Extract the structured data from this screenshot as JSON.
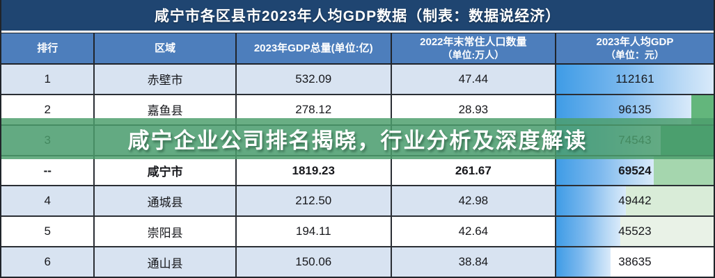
{
  "title": "咸宁市各区县市2023年人均GDP数据（制表：数据说经济）",
  "banner": {
    "text": "咸宁企业公司排名揭晓，行业分析及深度解读"
  },
  "table": {
    "columns": [
      {
        "label": "排行",
        "label2": ""
      },
      {
        "label": "区域",
        "label2": ""
      },
      {
        "label": "2023年GDP总量(单位:亿)",
        "label2": ""
      },
      {
        "label": "2022年末常住人口数量",
        "label2": "（单位:万人）"
      },
      {
        "label": "2023年人均GDP",
        "label2": "（单位：元）"
      }
    ],
    "rows": [
      {
        "rank": "1",
        "region": "赤壁市",
        "gdp": "532.09",
        "population": "47.44",
        "per_capita": "112161",
        "per_capita_value": 112161,
        "variant": "blue",
        "bold": false,
        "tail_color": ""
      },
      {
        "rank": "2",
        "region": "嘉鱼县",
        "gdp": "278.12",
        "population": "28.93",
        "per_capita": "96135",
        "per_capita_value": 96135,
        "variant": "white",
        "bold": false,
        "tail_color": "#63b67c"
      },
      {
        "rank": "3",
        "region": "",
        "gdp": "",
        "population": "",
        "per_capita": "74543",
        "per_capita_value": 74543,
        "variant": "blue",
        "bold": false,
        "tail_color": "#48a474"
      },
      {
        "rank": "--",
        "region": "咸宁市",
        "gdp": "1819.23",
        "population": "261.67",
        "per_capita": "69524",
        "per_capita_value": 69524,
        "variant": "white",
        "bold": true,
        "tail_color": "#a5d6ae"
      },
      {
        "rank": "4",
        "region": "通城县",
        "gdp": "212.50",
        "population": "42.98",
        "per_capita": "49442",
        "per_capita_value": 49442,
        "variant": "blue",
        "bold": false,
        "tail_color": "#d9ecd8"
      },
      {
        "rank": "5",
        "region": "崇阳县",
        "gdp": "194.11",
        "population": "42.64",
        "per_capita": "45523",
        "per_capita_value": 45523,
        "variant": "white",
        "bold": false,
        "tail_color": "#e9f2e7"
      },
      {
        "rank": "6",
        "region": "通山县",
        "gdp": "150.06",
        "population": "38.84",
        "per_capita": "38635",
        "per_capita_value": 38635,
        "variant": "blue",
        "bold": false,
        "tail_color": "#ffffff"
      }
    ]
  },
  "colors": {
    "title_bar": "#1f4571",
    "header": "#4d7ebc",
    "row_blue": "#d8e3f1",
    "row_white": "#ffffff",
    "databar_start": "#3f9ce6",
    "databar_end": "#d9eafa",
    "banner_green": "#4c9e6c",
    "border": "#2a2e34"
  },
  "chart_data": {
    "type": "table",
    "title": "咸宁市各区县市2023年人均GDP数据（制表：数据说经济）",
    "columns": [
      "排行",
      "区域",
      "2023年GDP总量(单位:亿)",
      "2022年末常住人口数量（单位:万人）",
      "2023年人均GDP（单位：元）"
    ],
    "rows": [
      [
        "1",
        "赤壁市",
        "532.09",
        "47.44",
        "112161"
      ],
      [
        "2",
        "嘉鱼县",
        "278.12",
        "28.93",
        "96135"
      ],
      [
        "3",
        "",
        "",
        "",
        "74543"
      ],
      [
        "--",
        "咸宁市",
        "1819.23",
        "261.67",
        "69524"
      ],
      [
        "4",
        "通城县",
        "212.50",
        "42.98",
        "49442"
      ],
      [
        "5",
        "崇阳县",
        "194.11",
        "42.64",
        "45523"
      ],
      [
        "6",
        "通山县",
        "150.06",
        "38.84",
        "38635"
      ]
    ],
    "databar_column": "2023年人均GDP（单位：元）",
    "databar_max": 112161,
    "overlay_banner_text": "咸宁企业公司排名揭晓，行业分析及深度解读"
  }
}
